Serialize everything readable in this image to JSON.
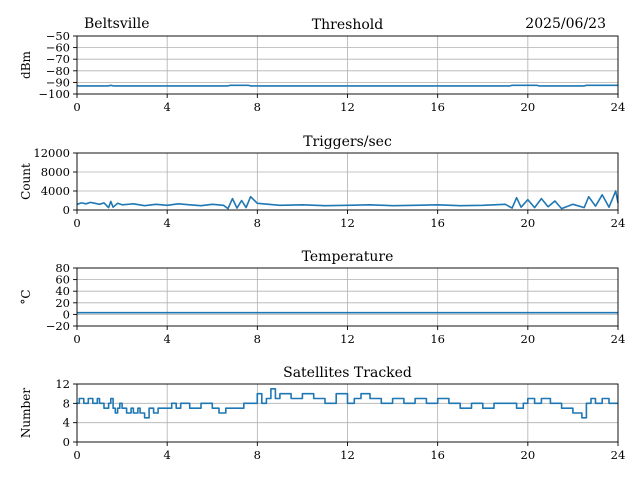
{
  "header": {
    "station": "Beltsville",
    "date": "2025/06/23"
  },
  "chart_data": [
    {
      "type": "line",
      "title": "Threshold",
      "xlabel": "",
      "ylabel": "dBm",
      "xlim": [
        0,
        24
      ],
      "ylim": [
        -100,
        -50
      ],
      "xticks": [
        0,
        4,
        8,
        12,
        16,
        20,
        24
      ],
      "yticks": [
        -100,
        -90,
        -80,
        -70,
        -60,
        -50
      ],
      "grid": true,
      "color": "#1f77b4",
      "series": [
        {
          "x": [
            0,
            1.4,
            1.5,
            1.6,
            6.7,
            6.8,
            7.6,
            7.7,
            19.2,
            19.3,
            20.4,
            20.5,
            22.5,
            22.6,
            24
          ],
          "y": [
            -93,
            -93,
            -92.5,
            -93,
            -93,
            -92.5,
            -92.5,
            -93,
            -93,
            -92.5,
            -92.5,
            -93,
            -93,
            -92.5,
            -92.5
          ]
        }
      ]
    },
    {
      "type": "line",
      "title": "Triggers/sec",
      "xlabel": "",
      "ylabel": "Count",
      "xlim": [
        0,
        24
      ],
      "ylim": [
        0,
        12000
      ],
      "xticks": [
        0,
        4,
        8,
        12,
        16,
        20,
        24
      ],
      "yticks": [
        0,
        4000,
        8000,
        12000
      ],
      "grid": true,
      "color": "#1f77b4",
      "series": [
        {
          "x": [
            0,
            0.2,
            0.4,
            0.6,
            0.8,
            1.0,
            1.2,
            1.4,
            1.5,
            1.6,
            1.8,
            2.0,
            2.5,
            3.0,
            3.5,
            4.0,
            4.5,
            5.0,
            5.5,
            6.0,
            6.5,
            6.7,
            6.9,
            7.1,
            7.3,
            7.5,
            7.7,
            8.0,
            8.5,
            9.0,
            10.0,
            11.0,
            12.0,
            13.0,
            14.0,
            15.0,
            16.0,
            17.0,
            18.0,
            19.0,
            19.3,
            19.5,
            19.7,
            20.0,
            20.3,
            20.6,
            20.9,
            21.2,
            21.5,
            22.0,
            22.5,
            22.7,
            23.0,
            23.3,
            23.6,
            23.9,
            24.0
          ],
          "y": [
            1200,
            1500,
            1300,
            1600,
            1400,
            1200,
            1500,
            500,
            1800,
            600,
            1400,
            1100,
            1300,
            900,
            1200,
            1000,
            1300,
            1100,
            900,
            1200,
            1000,
            300,
            2400,
            400,
            2000,
            500,
            2800,
            1400,
            1200,
            1000,
            1100,
            900,
            1000,
            1100,
            900,
            1000,
            1100,
            900,
            1000,
            1200,
            400,
            2600,
            600,
            2200,
            500,
            2400,
            700,
            1900,
            300,
            1200,
            500,
            2800,
            800,
            3200,
            600,
            4000,
            1500
          ]
        }
      ]
    },
    {
      "type": "line",
      "title": "Temperature",
      "xlabel": "",
      "ylabel": "°C",
      "xlim": [
        0,
        24
      ],
      "ylim": [
        -20,
        80
      ],
      "xticks": [
        0,
        4,
        8,
        12,
        16,
        20,
        24
      ],
      "yticks": [
        -20,
        0,
        20,
        40,
        60,
        80
      ],
      "grid": true,
      "color": "#1f77b4",
      "series": [
        {
          "x": [
            0,
            24
          ],
          "y": [
            3,
            3
          ]
        }
      ]
    },
    {
      "type": "line",
      "title": "Satellites Tracked",
      "xlabel": "",
      "ylabel": "Number",
      "xlim": [
        0,
        24
      ],
      "ylim": [
        0,
        12
      ],
      "xticks": [
        0,
        4,
        8,
        12,
        16,
        20,
        24
      ],
      "yticks": [
        0,
        4,
        8,
        12
      ],
      "grid": true,
      "color": "#1f77b4",
      "series": [
        {
          "step": true,
          "x": [
            0,
            0.1,
            0.3,
            0.5,
            0.7,
            0.9,
            1.0,
            1.2,
            1.4,
            1.5,
            1.6,
            1.7,
            1.8,
            1.9,
            2.0,
            2.2,
            2.4,
            2.5,
            2.6,
            2.7,
            2.8,
            3.0,
            3.2,
            3.4,
            3.6,
            4.0,
            4.2,
            4.4,
            4.6,
            5.0,
            5.5,
            6.0,
            6.3,
            6.6,
            7.0,
            7.4,
            7.8,
            8.0,
            8.2,
            8.4,
            8.6,
            8.8,
            9.0,
            9.5,
            10.0,
            10.5,
            11.0,
            11.5,
            12.0,
            12.3,
            12.6,
            13.0,
            13.5,
            14.0,
            14.5,
            15.0,
            15.5,
            16.0,
            16.5,
            17.0,
            17.5,
            18.0,
            18.5,
            19.0,
            19.5,
            19.8,
            20.0,
            20.3,
            20.6,
            21.0,
            21.5,
            22.0,
            22.4,
            22.6,
            22.8,
            23.0,
            23.3,
            23.6,
            24.0
          ],
          "y": [
            8,
            9,
            8,
            9,
            8,
            9,
            8,
            7,
            8,
            9,
            7,
            6,
            7,
            8,
            7,
            6,
            7,
            6,
            6,
            7,
            6,
            5,
            7,
            6,
            7,
            7,
            8,
            7,
            8,
            7,
            8,
            7,
            6,
            7,
            7,
            8,
            8,
            10,
            8,
            9,
            11,
            9,
            10,
            9,
            10,
            9,
            8,
            10,
            8,
            9,
            10,
            9,
            8,
            9,
            8,
            9,
            8,
            9,
            8,
            7,
            8,
            7,
            8,
            8,
            7,
            8,
            9,
            8,
            9,
            8,
            7,
            6,
            5,
            8,
            9,
            8,
            9,
            8,
            8
          ]
        }
      ]
    }
  ]
}
